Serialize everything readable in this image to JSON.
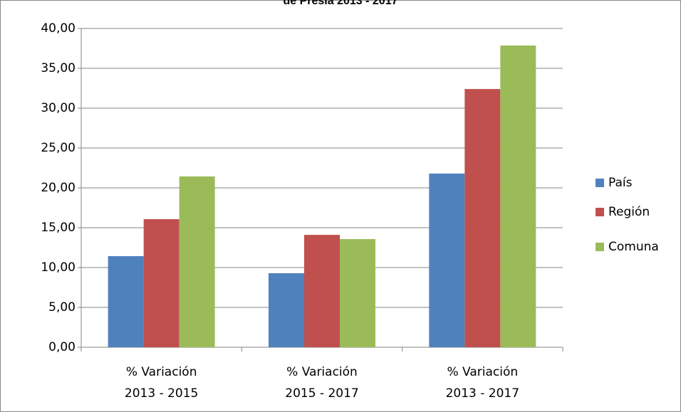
{
  "chart_data": {
    "type": "bar",
    "title": "de Presia 2013 - 2017",
    "categories": [
      "% Variación\n2013 - 2015",
      "% Variación\n2015 - 2017",
      "% Variación\n2013 - 2017"
    ],
    "series": [
      {
        "name": "País",
        "color": "#4f81bd",
        "values": [
          11.43,
          9.29,
          21.79
        ]
      },
      {
        "name": "Región",
        "color": "#c0504d",
        "values": [
          16.07,
          14.1,
          32.4
        ]
      },
      {
        "name": "Comuna",
        "color": "#9bbb59",
        "values": [
          21.43,
          13.57,
          37.86
        ]
      }
    ],
    "ylim": [
      0,
      40
    ],
    "yticks": [
      {
        "value": 0,
        "label": "0,00"
      },
      {
        "value": 5,
        "label": "5,00"
      },
      {
        "value": 10,
        "label": "10,00"
      },
      {
        "value": 15,
        "label": "15,00"
      },
      {
        "value": 20,
        "label": "20,00"
      },
      {
        "value": 25,
        "label": "25,00"
      },
      {
        "value": 30,
        "label": "30,00"
      },
      {
        "value": 35,
        "label": "35,00"
      },
      {
        "value": 40,
        "label": "40,00"
      }
    ],
    "grid": true,
    "legend": "right"
  }
}
